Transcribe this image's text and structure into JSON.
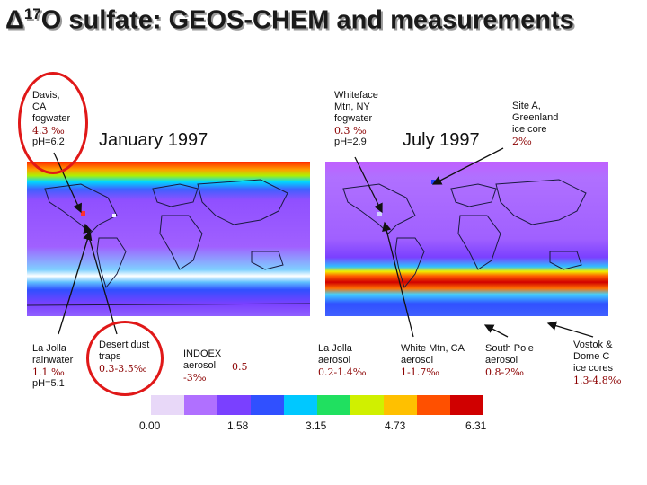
{
  "title": {
    "delta": "Δ",
    "sup": "17",
    "rest": "O sulfate: GEOS-CHEM and measurements"
  },
  "maps": {
    "left_month": "January 1997",
    "right_month": "July 1997"
  },
  "sites": {
    "davis": {
      "lines": [
        "Davis,",
        "CA",
        "fogwater"
      ],
      "value": "4.3 ‰",
      "ph": "pH=6.2"
    },
    "whiteface": {
      "lines": [
        "Whiteface",
        "Mtn, NY",
        "fogwater"
      ],
      "value": "0.3 ‰",
      "ph": "pH=2.9"
    },
    "site_a": {
      "lines": [
        "Site A,",
        "Greenland",
        "ice core"
      ],
      "value": "2‰"
    },
    "lajolla_rain": {
      "lines": [
        "La Jolla",
        "rainwater"
      ],
      "value": "1.1 ‰",
      "ph": "pH=5.1"
    },
    "desert_dust": {
      "lines": [
        "Desert dust",
        "traps"
      ],
      "value": "0.3-3.5‰"
    },
    "indoex": {
      "lines": [
        "INDOEX",
        "aerosol"
      ],
      "value": "-3‰",
      "value2": "0.5"
    },
    "lajolla_aerosol": {
      "lines": [
        "La Jolla",
        "aerosol"
      ],
      "value": "0.2-1.4‰"
    },
    "whitemtn": {
      "lines": [
        "White Mtn, CA",
        "aerosol"
      ],
      "value": "1-1.7‰"
    },
    "southpole": {
      "lines": [
        "South Pole",
        "aerosol"
      ],
      "value": "0.8-2‰"
    },
    "vostok": {
      "lines": [
        "Vostok &",
        "Dome C",
        "ice cores"
      ],
      "value": "1.3-4.8‰"
    }
  },
  "colorbar": {
    "ticks": [
      "0.00",
      "1.58",
      "3.15",
      "4.73",
      "6.31"
    ],
    "colors": [
      "#e8d8f8",
      "#b070ff",
      "#7a40ff",
      "#3050ff",
      "#00c8ff",
      "#20e060",
      "#d0f000",
      "#ffc000",
      "#ff5000",
      "#d00000"
    ]
  },
  "colors": {
    "ring": "#e01818",
    "value_text": "#8b0000"
  }
}
